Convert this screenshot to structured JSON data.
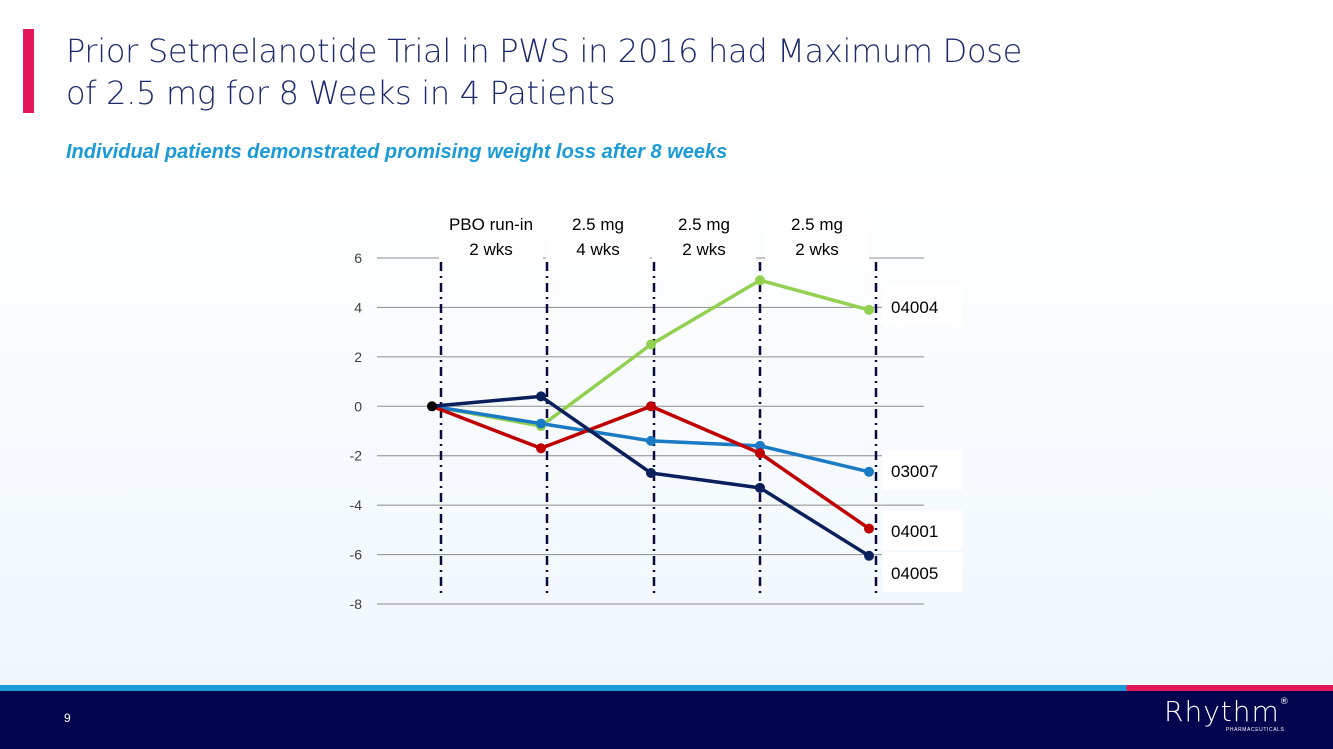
{
  "title": {
    "line1": "Prior Setmelanotide Trial in PWS in 2016 had Maximum Dose",
    "line2": "of 2.5 mg for 8 Weeks in 4 Patients"
  },
  "subtitle": "Individual patients demonstrated promising weight loss after 8 weeks",
  "footer": {
    "page_number": "9",
    "logo_main": "Rhythm",
    "logo_reg": "®",
    "logo_sub": "PHARMACEUTICALS"
  },
  "colors": {
    "accent": "#e2185b",
    "title": "#1b2a6b",
    "subtitle": "#1a9bd7",
    "footer": "#03054e"
  },
  "chart_data": {
    "type": "line",
    "title": "",
    "xlabel": "",
    "ylabel": "",
    "ylim": [
      -8,
      6
    ],
    "yticks": [
      6,
      4,
      2,
      0,
      -2,
      -4,
      -6,
      -8
    ],
    "grid": true,
    "periods": [
      {
        "line1": "PBO run-in",
        "line2": "2 wks"
      },
      {
        "line1": "2.5 mg",
        "line2": "4 wks"
      },
      {
        "line1": "2.5 mg",
        "line2": "2 wks"
      },
      {
        "line1": "2.5 mg",
        "line2": "2 wks"
      }
    ],
    "x": [
      0,
      1,
      2,
      3,
      4
    ],
    "series": [
      {
        "name": "04004",
        "color": "#92d050",
        "values": [
          0,
          -0.8,
          2.5,
          5.1,
          3.9
        ]
      },
      {
        "name": "03007",
        "color": "#1a7ac4",
        "values": [
          0,
          -0.7,
          -1.4,
          -1.6,
          -2.65
        ]
      },
      {
        "name": "04001",
        "color": "#c00000",
        "values": [
          0,
          -1.7,
          0,
          -1.9,
          -4.95
        ]
      },
      {
        "name": "04005",
        "color": "#0a1f5c",
        "values": [
          0,
          0.4,
          -2.7,
          -3.3,
          -6.05
        ]
      }
    ]
  }
}
